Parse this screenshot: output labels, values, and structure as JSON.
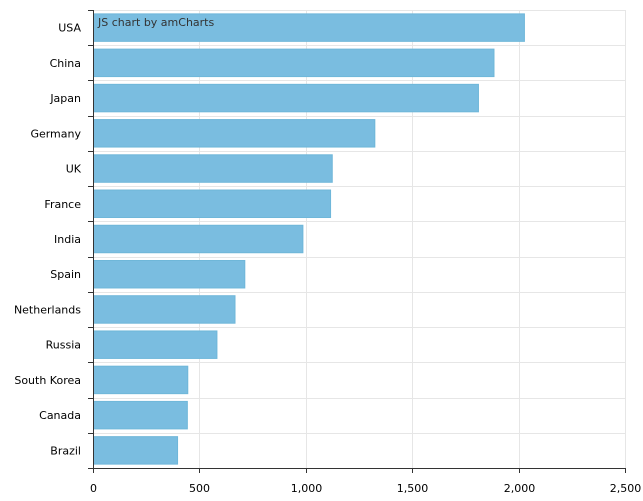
{
  "credit_text": "JS chart by amCharts",
  "colors": {
    "bar": "#7abde0",
    "grid": "#e6e6e6",
    "axis": "#333333"
  },
  "chart_data": {
    "type": "bar",
    "orientation": "horizontal",
    "categories": [
      "USA",
      "China",
      "Japan",
      "Germany",
      "UK",
      "France",
      "India",
      "Spain",
      "Netherlands",
      "Russia",
      "South Korea",
      "Canada",
      "Brazil"
    ],
    "values": [
      2025,
      1882,
      1809,
      1322,
      1122,
      1114,
      984,
      711,
      665,
      580,
      443,
      441,
      395
    ],
    "title": "",
    "xlabel": "",
    "ylabel": "",
    "xlim": [
      0,
      2500
    ],
    "ticks": [
      0,
      500,
      1000,
      1500,
      2000,
      2500
    ],
    "tick_labels": [
      "0",
      "500",
      "1,000",
      "1,500",
      "2,000",
      "2,500"
    ],
    "grid": true,
    "legend": "none"
  }
}
